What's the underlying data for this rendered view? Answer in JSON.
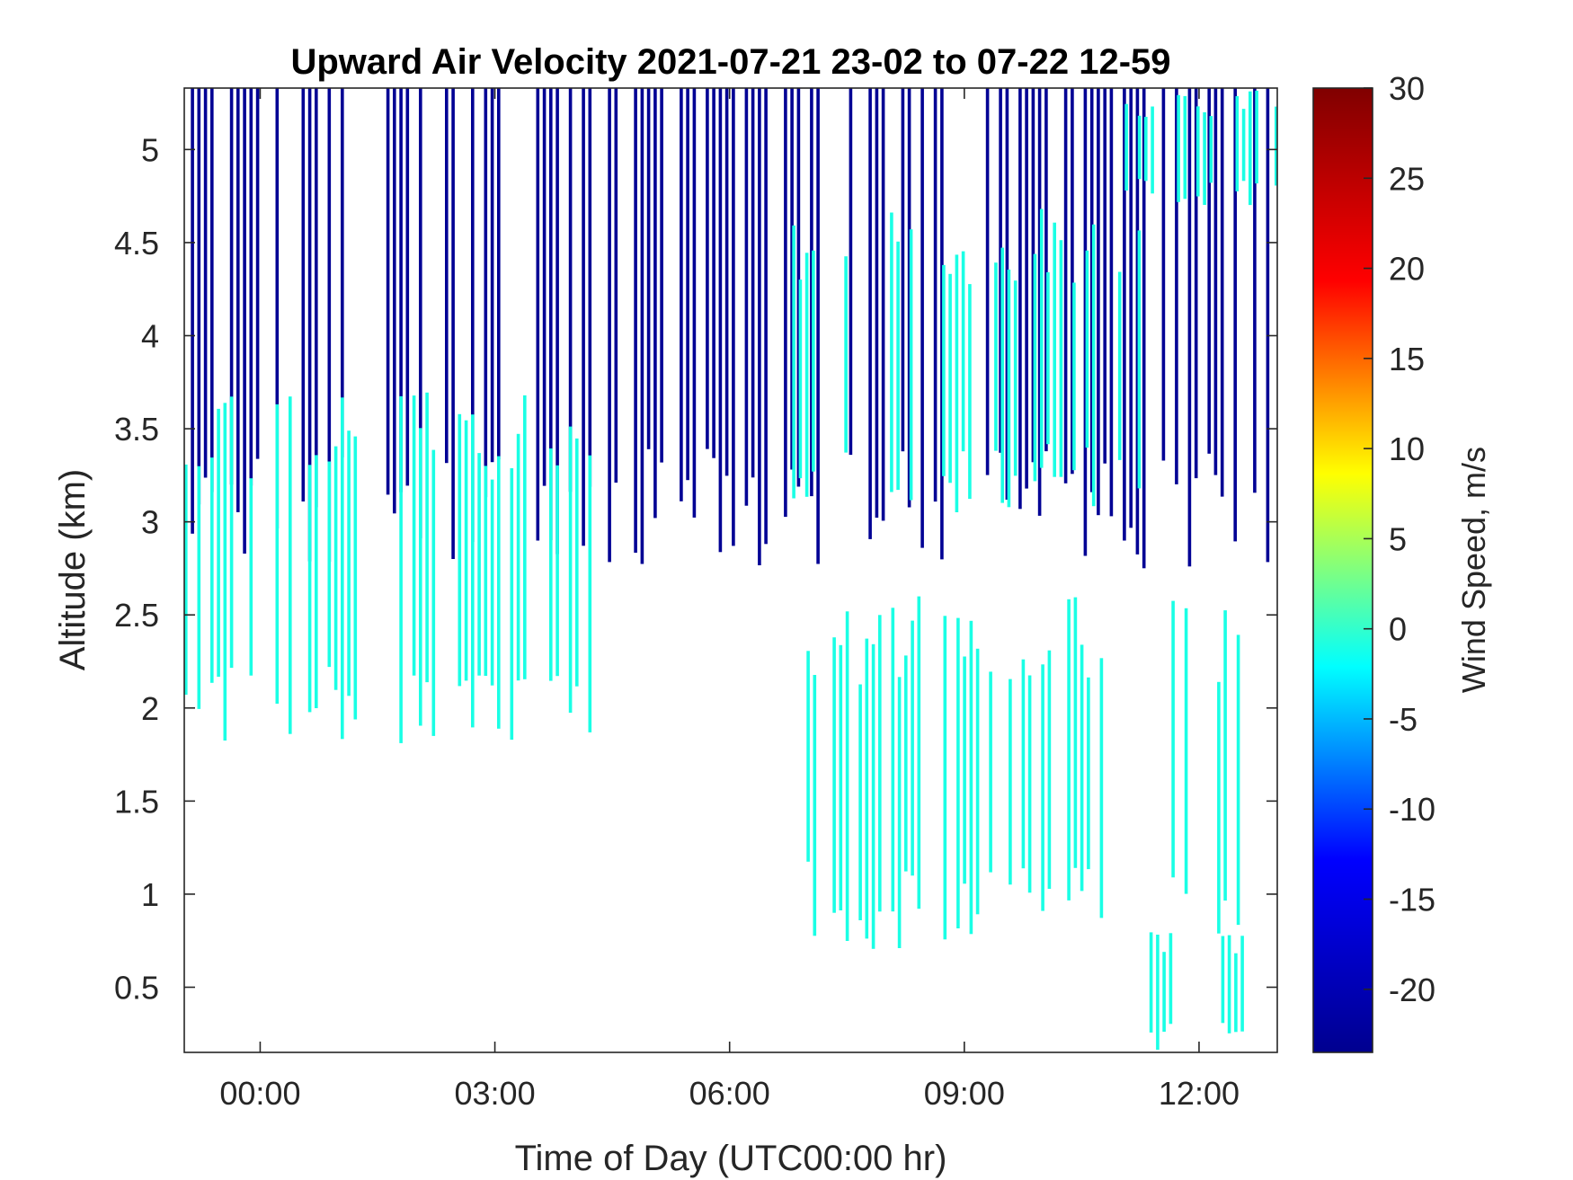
{
  "chart_data": {
    "type": "heatmap",
    "title": "Upward Air Velocity 2021-07-21 23-02 to 07-22 12-59",
    "xlabel": "Time of Day (UTC00:00 hr)",
    "ylabel": "Altitude (km)",
    "colorbar_label": "Wind Speed, m/s",
    "x_unit": "hours from 00:00 UTC 2021-07-22",
    "xlim": [
      -0.97,
      13.0
    ],
    "ylim": [
      0.15,
      5.33
    ],
    "clim": [
      -23.5,
      30
    ],
    "x_ticks": [
      {
        "value": 0,
        "label": "00:00"
      },
      {
        "value": 3,
        "label": "03:00"
      },
      {
        "value": 6,
        "label": "06:00"
      },
      {
        "value": 9,
        "label": "09:00"
      },
      {
        "value": 12,
        "label": "12:00"
      }
    ],
    "y_ticks": [
      {
        "value": 0.5,
        "label": "0.5"
      },
      {
        "value": 1,
        "label": "1"
      },
      {
        "value": 1.5,
        "label": "1.5"
      },
      {
        "value": 2,
        "label": "2"
      },
      {
        "value": 2.5,
        "label": "2.5"
      },
      {
        "value": 3,
        "label": "3"
      },
      {
        "value": 3.5,
        "label": "3.5"
      },
      {
        "value": 4,
        "label": "4"
      },
      {
        "value": 4.5,
        "label": "4.5"
      },
      {
        "value": 5,
        "label": "5"
      }
    ],
    "colorbar_ticks": [
      {
        "value": -20,
        "label": "-20"
      },
      {
        "value": -15,
        "label": "-15"
      },
      {
        "value": -10,
        "label": "-10"
      },
      {
        "value": -5,
        "label": "-5"
      },
      {
        "value": 0,
        "label": "0"
      },
      {
        "value": 5,
        "label": "5"
      },
      {
        "value": 10,
        "label": "10"
      },
      {
        "value": 15,
        "label": "15"
      },
      {
        "value": 20,
        "label": "20"
      },
      {
        "value": 25,
        "label": "25"
      },
      {
        "value": 30,
        "label": "30"
      }
    ],
    "colormap": "jet",
    "colormap_stops": [
      "#00008f",
      "#0000ff",
      "#00ffff",
      "#ffff00",
      "#ff0000",
      "#800000"
    ],
    "time_step_hours": 0.0833,
    "regions": [
      {
        "desc": "strong downward (dark navy) upper layer",
        "x": [
          -0.97,
          13.0
        ],
        "y_min_km": 2.75,
        "y_max_km": 5.33,
        "value": -23
      },
      {
        "desc": "near-zero (aquamarine) early-morning column",
        "x": [
          -0.97,
          4.2
        ],
        "y_min_km": 1.75,
        "y_max_km": 3.7,
        "value": -1
      },
      {
        "desc": "near-zero patch",
        "x": [
          6.8,
          11.3
        ],
        "y_min_km": 3.0,
        "y_max_km": 4.7,
        "value": -1
      },
      {
        "desc": "near-zero patch",
        "x": [
          10.8,
          13.0
        ],
        "y_min_km": 4.7,
        "y_max_km": 5.33,
        "value": -1
      },
      {
        "desc": "near-zero boundary layer",
        "x": [
          6.9,
          12.8
        ],
        "y_min_km": 0.7,
        "y_max_km": 2.6,
        "value": -1
      },
      {
        "desc": "near-zero near-surface",
        "x": [
          11.2,
          13.0
        ],
        "y_min_km": 0.15,
        "y_max_km": 0.8,
        "value": -1
      }
    ]
  }
}
